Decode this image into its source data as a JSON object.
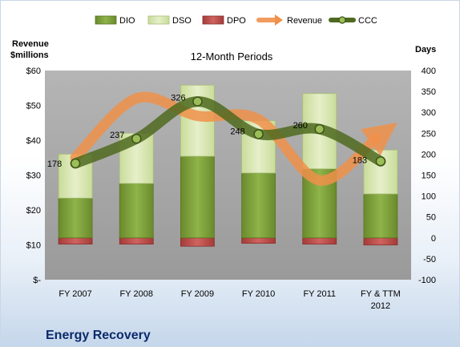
{
  "chart_data": {
    "type": "bar",
    "title": "12-Month Periods",
    "company": "Energy Recovery",
    "left_axis": {
      "label_line1": "Revenue",
      "label_line2": "$millions",
      "range": [
        0,
        60
      ],
      "ticks": [
        0,
        10,
        20,
        30,
        40,
        50,
        60
      ],
      "tick_labels": [
        "$-",
        "$10",
        "$20",
        "$30",
        "$40",
        "$50",
        "$60"
      ]
    },
    "right_axis": {
      "label": "Days",
      "range": [
        -100,
        400
      ],
      "ticks": [
        -100,
        -50,
        0,
        50,
        100,
        150,
        200,
        250,
        300,
        350,
        400
      ],
      "tick_labels": [
        "-100",
        "-50",
        "0",
        "50",
        "100",
        "150",
        "200",
        "250",
        "300",
        "350",
        "400"
      ]
    },
    "categories": [
      [
        "FY 2007"
      ],
      [
        "FY 2008"
      ],
      [
        "FY 2009"
      ],
      [
        "FY 2010"
      ],
      [
        "FY 2011"
      ],
      [
        "FY & TTM",
        "2012"
      ]
    ],
    "series": [
      {
        "name": "DIO",
        "axis": "right",
        "values": [
          95,
          130,
          195,
          155,
          165,
          105
        ]
      },
      {
        "name": "DSO",
        "axis": "right",
        "values": [
          105,
          120,
          170,
          125,
          180,
          105
        ]
      },
      {
        "name": "DPO",
        "axis": "right",
        "values": [
          -15,
          -15,
          -20,
          -13,
          -15,
          -17
        ]
      },
      {
        "name": "Revenue",
        "axis": "left",
        "values": [
          35.0,
          52.0,
          47.0,
          46.0,
          28.5,
          40.5
        ]
      },
      {
        "name": "CCC",
        "axis": "right",
        "values": [
          178,
          237,
          326,
          248,
          260,
          183
        ]
      }
    ],
    "data_labels": [
      "178",
      "237",
      "326",
      "248",
      "260",
      "183"
    ],
    "legend": [
      "DIO",
      "DSO",
      "DPO",
      "Revenue",
      "CCC"
    ],
    "legend_position": "top",
    "grid": false,
    "colors": {
      "DIO": "#7ea03a",
      "DSO": "#d9e7b3",
      "DPO": "#c0504d",
      "Revenue": "#f0904a",
      "CCC": "#4f6a20",
      "plot_bg": "#a6a6a6"
    }
  }
}
